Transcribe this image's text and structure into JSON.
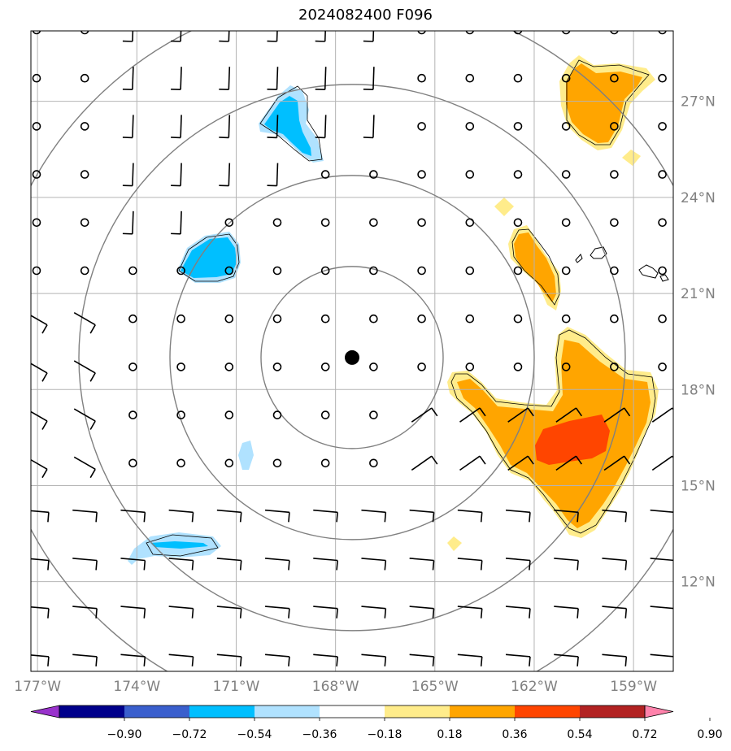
{
  "title": "2024082400 F096",
  "map": {
    "lon_range": [
      -177.2,
      -157.8
    ],
    "lat_range": [
      9.2,
      29.2
    ],
    "center": {
      "lon": -167.5,
      "lat": 19.0,
      "marker": "filled-circle"
    },
    "range_rings": 4,
    "gridlines": true
  },
  "lon_labels": [
    {
      "lon": -177,
      "text": "177°W"
    },
    {
      "lon": -174,
      "text": "174°W"
    },
    {
      "lon": -171,
      "text": "171°W"
    },
    {
      "lon": -168,
      "text": "168°W"
    },
    {
      "lon": -165,
      "text": "165°W"
    },
    {
      "lon": -162,
      "text": "162°W"
    },
    {
      "lon": -159,
      "text": "159°W"
    }
  ],
  "lat_labels": [
    {
      "lat": 27,
      "text": "27°N"
    },
    {
      "lat": 24,
      "text": "24°N"
    },
    {
      "lat": 21,
      "text": "21°N"
    },
    {
      "lat": 18,
      "text": "18°N"
    },
    {
      "lat": 15,
      "text": "15°N"
    },
    {
      "lat": 12,
      "text": "12°N"
    }
  ],
  "colorbar": {
    "colors": [
      "#9932CC",
      "#00008B",
      "#3A5FCD",
      "#00BFFF",
      "#B0E2FF",
      "#FFFFFF",
      "#FFEC8B",
      "#FFA500",
      "#FF4500",
      "#B22222",
      "#FF82AB"
    ],
    "labels": [
      "−0.90",
      "−0.72",
      "−0.54",
      "−0.36",
      "−0.18",
      "0.18",
      "0.36",
      "0.54",
      "0.72",
      "0.90"
    ]
  },
  "colors": {
    "grid": "#b4b4b4",
    "ring": "#808080",
    "coast": "#000000"
  }
}
